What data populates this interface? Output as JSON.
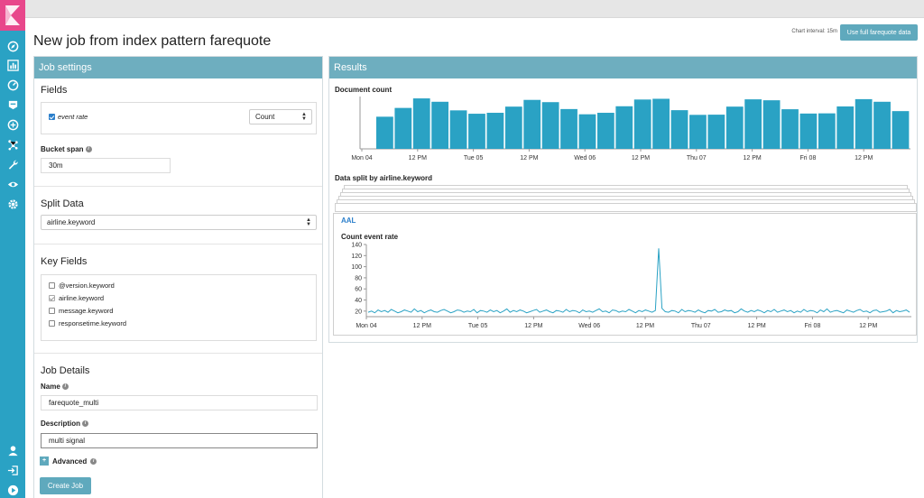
{
  "sidebar": {
    "logo": "kibana-logo",
    "icons": [
      "discover-icon",
      "visualize-icon",
      "dashboard-icon",
      "timelion-icon",
      "machine-learning-icon",
      "graph-icon",
      "dev-tools-icon",
      "monitoring-icon",
      "management-icon"
    ],
    "bottom_icons": [
      "user-icon",
      "logout-icon",
      "collapse-icon"
    ],
    "accent": "#2aa2c4",
    "logo_color": "#e8478b"
  },
  "header": {
    "title": "New job from index pattern farequote",
    "chart_interval": "Chart interval: 15m",
    "full_data_button": "Use full farequote data"
  },
  "job_settings": {
    "header": "Job settings",
    "fields": {
      "title": "Fields",
      "field_name": "event rate",
      "field_checked": true,
      "function": "Count"
    },
    "bucket_span": {
      "label": "Bucket span",
      "value": "30m"
    },
    "split_data": {
      "title": "Split Data",
      "value": "airline.keyword"
    },
    "key_fields": {
      "title": "Key Fields",
      "items": [
        {
          "label": "@version.keyword",
          "checked": false
        },
        {
          "label": "airline.keyword",
          "checked": true
        },
        {
          "label": "message.keyword",
          "checked": false
        },
        {
          "label": "responsetime.keyword",
          "checked": false
        }
      ]
    },
    "job_details": {
      "title": "Job Details",
      "name_label": "Name",
      "name_value": "farequote_multi",
      "description_label": "Description",
      "description_value": "multi signal",
      "advanced_label": "Advanced",
      "create_button": "Create Job"
    }
  },
  "results": {
    "header": "Results",
    "document_count_title": "Document count",
    "split_title": "Data split by airline.keyword",
    "split_card_label": "AAL",
    "split_chart_title": "Count event rate",
    "bar_color": "#2aa2c4",
    "line_color": "#2aa2c4"
  },
  "chart_data": [
    {
      "type": "bar",
      "title": "Document count",
      "x_tick_labels": [
        "Mon 04",
        "12 PM",
        "Tue 05",
        "12 PM",
        "Wed 06",
        "12 PM",
        "Thu 07",
        "12 PM",
        "Fri 08",
        "12 PM"
      ],
      "values": [
        1720,
        2190,
        2700,
        2520,
        2060,
        1880,
        1930,
        2260,
        2620,
        2500,
        2130,
        1850,
        1930,
        2280,
        2640,
        2680,
        2070,
        1820,
        1830,
        2260,
        2650,
        2600,
        2120,
        1890,
        1900,
        2270,
        2660,
        2520,
        2020
      ],
      "ylim": [
        0,
        2800
      ]
    },
    {
      "type": "line",
      "title": "Count event rate",
      "series_label": "AAL",
      "x_tick_labels": [
        "Mon 04",
        "12 PM",
        "Tue 05",
        "12 PM",
        "Wed 06",
        "12 PM",
        "Thu 07",
        "12 PM",
        "Fri 08",
        "12 PM"
      ],
      "y_tick_labels": [
        "20",
        "40",
        "60",
        "80",
        "100",
        "120",
        "140"
      ],
      "ylim": [
        10,
        140
      ],
      "values": [
        18,
        20,
        17,
        22,
        19,
        21,
        18,
        23,
        20,
        17,
        19,
        22,
        20,
        18,
        24,
        19,
        21,
        17,
        20,
        22,
        19,
        18,
        21,
        23,
        20,
        17,
        19,
        22,
        21,
        18,
        20,
        19,
        23,
        17,
        21,
        20,
        18,
        22,
        19,
        21,
        17,
        20,
        24,
        18,
        21,
        19,
        22,
        20,
        17,
        19,
        21,
        23,
        18,
        20,
        22,
        19,
        17,
        21,
        20,
        18,
        23,
        19,
        21,
        20,
        17,
        22,
        19,
        20,
        18,
        21,
        24,
        19,
        20,
        17,
        22,
        21,
        18,
        20,
        19,
        23,
        20,
        17,
        21,
        19,
        22,
        20,
        18,
        21,
        133,
        25,
        19,
        18,
        21,
        20,
        17,
        23,
        19,
        21,
        20,
        18,
        22,
        19,
        17,
        21,
        20,
        23,
        18,
        19,
        22,
        20,
        21,
        17,
        19,
        24,
        20,
        18,
        21,
        19,
        22,
        20,
        17,
        21,
        19,
        23,
        18,
        20,
        22,
        19,
        21,
        17,
        20,
        18,
        23,
        19,
        21,
        20,
        17,
        22,
        19,
        24,
        18,
        20,
        21,
        19,
        17,
        22,
        20,
        18,
        21,
        23,
        19,
        20,
        17,
        21,
        22,
        18,
        19,
        20,
        23,
        17,
        21,
        19,
        20,
        22,
        18
      ]
    }
  ]
}
